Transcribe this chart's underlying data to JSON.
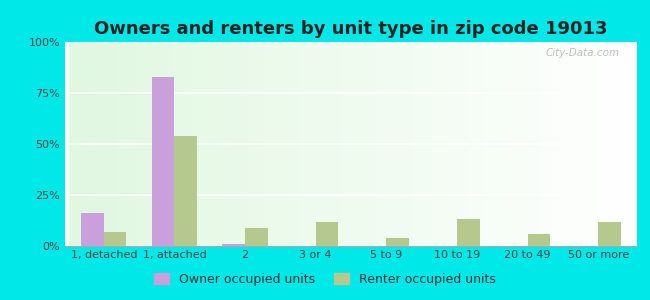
{
  "title": "Owners and renters by unit type in zip code 19013",
  "categories": [
    "1, detached",
    "1, attached",
    "2",
    "3 or 4",
    "5 to 9",
    "10 to 19",
    "20 to 49",
    "50 or more"
  ],
  "owner_values": [
    16,
    83,
    1,
    0,
    0,
    0,
    0,
    0
  ],
  "renter_values": [
    7,
    54,
    9,
    12,
    4,
    13,
    6,
    12
  ],
  "owner_color": "#c9a0dc",
  "renter_color": "#b5c98e",
  "outer_bg": "#00e8e8",
  "ylim": [
    0,
    100
  ],
  "yticks": [
    0,
    25,
    50,
    75,
    100
  ],
  "ytick_labels": [
    "0%",
    "25%",
    "50%",
    "75%",
    "100%"
  ],
  "legend_owner": "Owner occupied units",
  "legend_renter": "Renter occupied units",
  "title_fontsize": 13,
  "tick_fontsize": 8,
  "legend_fontsize": 9,
  "bar_width": 0.32,
  "watermark": "City-Data.com"
}
